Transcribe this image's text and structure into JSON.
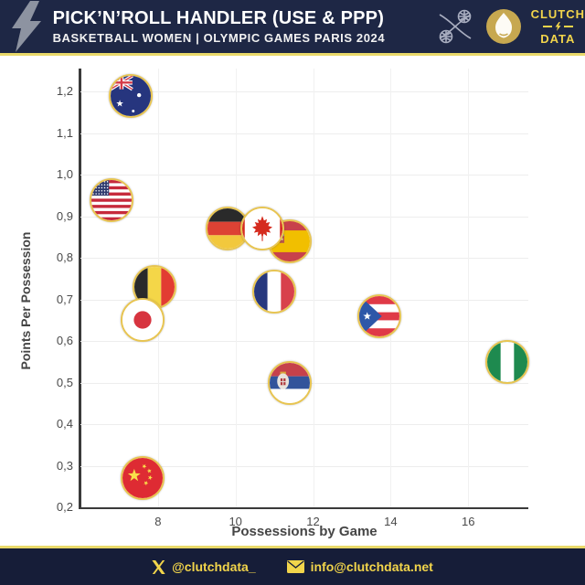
{
  "header": {
    "title": "PICK’N’ROLL HANDLER (USE & PPP)",
    "subtitle": "BASKETBALL WOMEN | OLYMPIC GAMES PARIS 2024",
    "brand": {
      "line1": "CLUTCH",
      "line2": "DATA"
    }
  },
  "footer": {
    "twitter": "@clutchdata_",
    "email": "info@clutchdata.net"
  },
  "colors": {
    "navy": "#1E2745",
    "footer_navy": "#161D38",
    "accent_yellow": "#E9D96A",
    "brand_yellow": "#F2D54B",
    "ring_gold": "#E8C552",
    "grid": "#EDEDED",
    "axis": "#3A3A3A",
    "tick_text": "#4A4A4A"
  },
  "chart_data": {
    "type": "scatter",
    "title": "Pick'n'Roll Handler (Use & PPP) - Basketball Women - Olympic Games Paris 2024",
    "xlabel": "Possessions by Game",
    "ylabel": "Points Per Possession",
    "xlim": [
      6,
      17.55
    ],
    "ylim": [
      0.2,
      1.256
    ],
    "grid": true,
    "x_ticks": [
      {
        "v": 8,
        "label": "8"
      },
      {
        "v": 10,
        "label": "10"
      },
      {
        "v": 12,
        "label": "12"
      },
      {
        "v": 14,
        "label": "14"
      },
      {
        "v": 16,
        "label": "16"
      }
    ],
    "y_ticks": [
      {
        "v": 1.2,
        "label": "1,2"
      },
      {
        "v": 1.1,
        "label": "1,1"
      },
      {
        "v": 1.0,
        "label": "1,0"
      },
      {
        "v": 0.9,
        "label": "0,9"
      },
      {
        "v": 0.8,
        "label": "0,8"
      },
      {
        "v": 0.7,
        "label": "0,7"
      },
      {
        "v": 0.6,
        "label": "0,6"
      },
      {
        "v": 0.5,
        "label": "0,5"
      },
      {
        "v": 0.4,
        "label": "0,4"
      },
      {
        "v": 0.3,
        "label": "0,3"
      },
      {
        "v": 0.2,
        "label": "0,2"
      }
    ],
    "points": [
      {
        "country": "Australia",
        "flag": "au",
        "x": 7.3,
        "y": 1.19
      },
      {
        "country": "USA",
        "flag": "us",
        "x": 6.8,
        "y": 0.94
      },
      {
        "country": "Germany",
        "flag": "de",
        "x": 9.8,
        "y": 0.87
      },
      {
        "country": "Spain",
        "flag": "es",
        "x": 11.4,
        "y": 0.84
      },
      {
        "country": "Canada",
        "flag": "ca",
        "x": 10.7,
        "y": 0.87
      },
      {
        "country": "Belgium",
        "flag": "be",
        "x": 7.9,
        "y": 0.73
      },
      {
        "country": "Japan",
        "flag": "jp",
        "x": 7.6,
        "y": 0.65
      },
      {
        "country": "France",
        "flag": "fr",
        "x": 11.0,
        "y": 0.72
      },
      {
        "country": "Puerto Rico",
        "flag": "pr",
        "x": 13.7,
        "y": 0.66
      },
      {
        "country": "Nigeria",
        "flag": "ng",
        "x": 17.0,
        "y": 0.55
      },
      {
        "country": "Serbia",
        "flag": "rs",
        "x": 11.4,
        "y": 0.5
      },
      {
        "country": "China",
        "flag": "cn",
        "x": 7.6,
        "y": 0.27
      }
    ]
  }
}
